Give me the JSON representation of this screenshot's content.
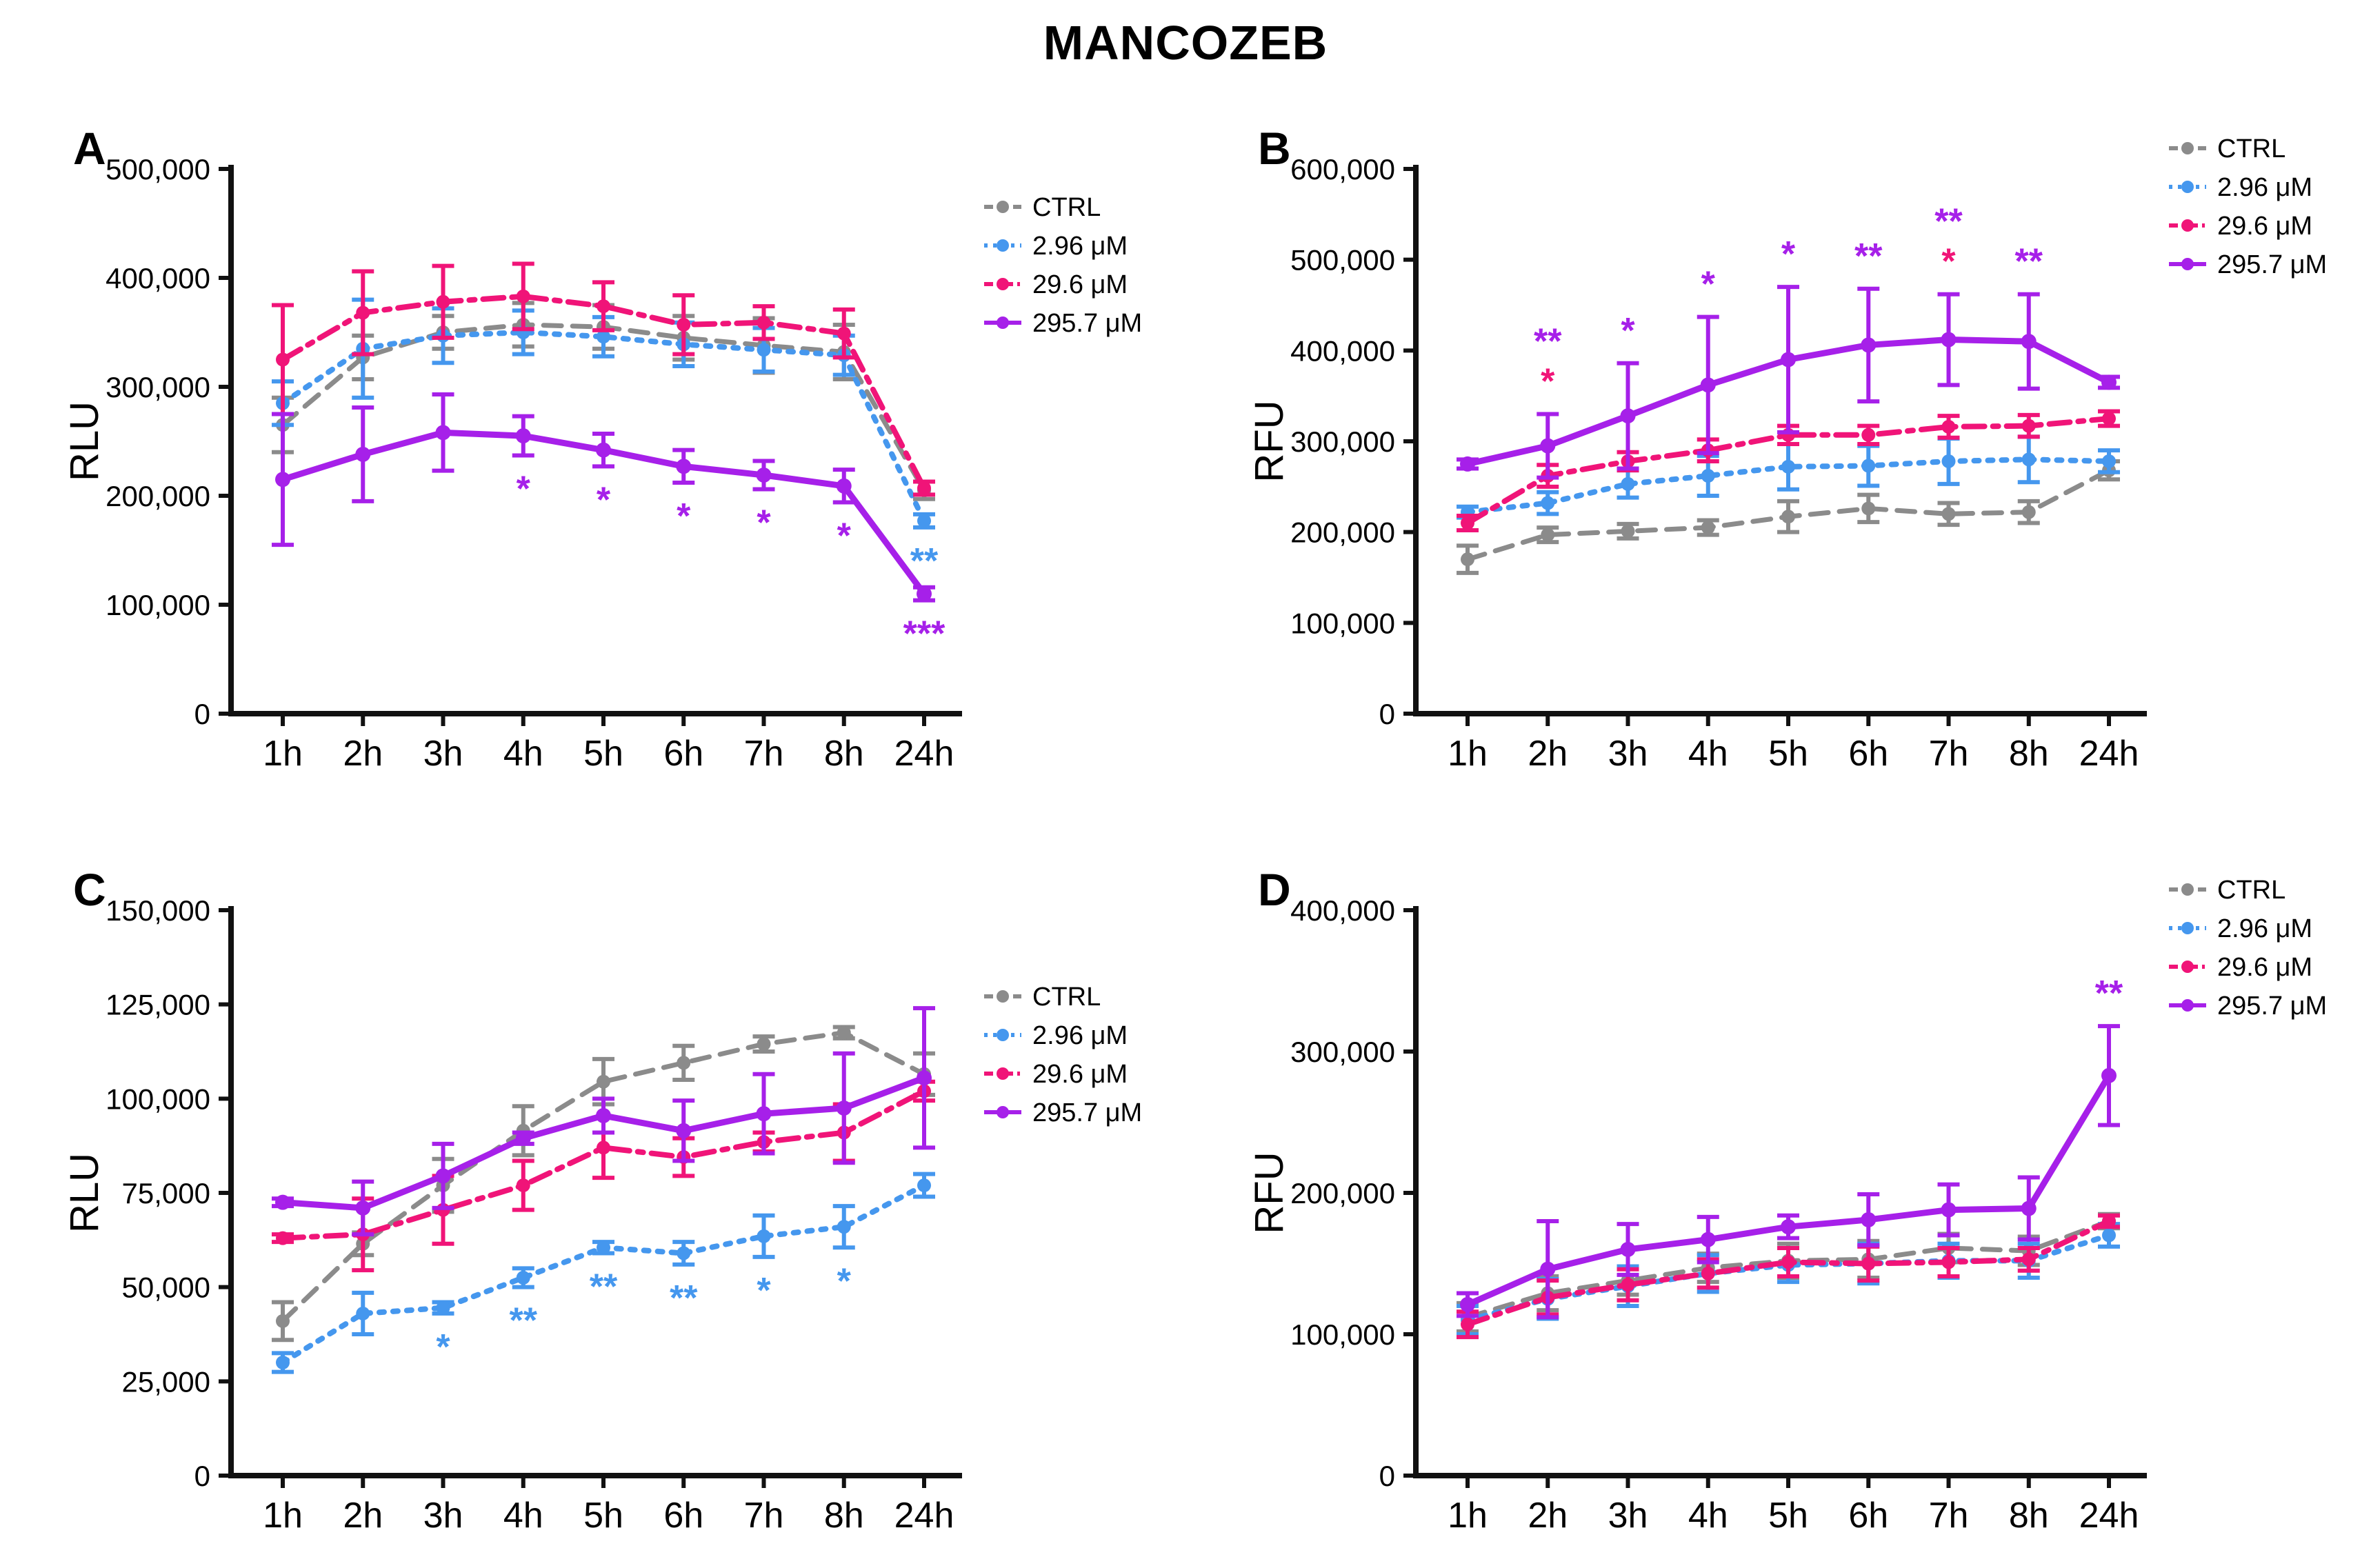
{
  "title": "MANCOZEB",
  "colors": {
    "ctrl": "#8B8B8B",
    "low": "#4597EE",
    "mid": "#F01478",
    "high": "#A620E9",
    "axis": "#111111"
  },
  "legend_labels": [
    "CTRL",
    "2.96 μM",
    "29.6 μM",
    "295.7 μM"
  ],
  "chart_data": [
    {
      "type": "line",
      "letter": "A",
      "ylabel": "RLU",
      "xlabel": "",
      "ylim": [
        0,
        500000
      ],
      "ytick_step": 100000,
      "ytick_labels": [
        "0",
        "100,000",
        "200,000",
        "300,000",
        "400,000",
        "500,000"
      ],
      "categories": [
        "1h",
        "2h",
        "3h",
        "4h",
        "5h",
        "6h",
        "7h",
        "8h",
        "24h"
      ],
      "legend_position": "right",
      "legend_y": 140,
      "grid": false,
      "series": [
        {
          "name": "CTRL",
          "color_key": "ctrl",
          "dash": "dashed",
          "values": [
            265000,
            327000,
            350000,
            357000,
            355000,
            345000,
            338000,
            332000,
            205000
          ],
          "errors": [
            25000,
            20000,
            15000,
            20000,
            20000,
            20000,
            25000,
            25000,
            8000
          ]
        },
        {
          "name": "2.96 μM",
          "color_key": "low",
          "dash": "dotted",
          "values": [
            285000,
            335000,
            347000,
            350000,
            346000,
            339000,
            334000,
            329000,
            177000
          ],
          "errors": [
            20000,
            45000,
            25000,
            20000,
            18000,
            20000,
            20000,
            18000,
            6000
          ]
        },
        {
          "name": "29.6 μM",
          "color_key": "mid",
          "dash": "dashdot",
          "values": [
            325000,
            368000,
            378000,
            383000,
            374000,
            357000,
            359000,
            349000,
            207000
          ],
          "errors": [
            50000,
            38000,
            33000,
            30000,
            22000,
            27000,
            15000,
            22000,
            6000
          ]
        },
        {
          "name": "295.7 μM",
          "color_key": "high",
          "dash": "solid",
          "values": [
            215000,
            238000,
            258000,
            255000,
            242000,
            227000,
            219000,
            209000,
            110000
          ],
          "errors": [
            60000,
            43000,
            35000,
            18000,
            15000,
            15000,
            13000,
            15000,
            6000
          ]
        }
      ],
      "annotations": [
        {
          "series": "295.7 μM",
          "xi": 3,
          "text": "*",
          "place": "below",
          "level": 1
        },
        {
          "series": "295.7 μM",
          "xi": 4,
          "text": "*",
          "place": "below",
          "level": 1
        },
        {
          "series": "295.7 μM",
          "xi": 5,
          "text": "*",
          "place": "below",
          "level": 1
        },
        {
          "series": "295.7 μM",
          "xi": 6,
          "text": "*",
          "place": "below",
          "level": 1
        },
        {
          "series": "295.7 μM",
          "xi": 7,
          "text": "*",
          "place": "below",
          "level": 1
        },
        {
          "series": "2.96 μM",
          "xi": 8,
          "text": "**",
          "place": "below",
          "level": 1
        },
        {
          "series": "295.7 μM",
          "xi": 8,
          "text": "***",
          "place": "below",
          "level": 1
        }
      ]
    },
    {
      "type": "line",
      "letter": "B",
      "ylabel": "RFU",
      "xlabel": "",
      "ylim": [
        0,
        600000
      ],
      "ytick_step": 100000,
      "ytick_labels": [
        "0",
        "100,000",
        "200,000",
        "300,000",
        "400,000",
        "500,000",
        "600,000"
      ],
      "categories": [
        "1h",
        "2h",
        "3h",
        "4h",
        "5h",
        "6h",
        "7h",
        "8h",
        "24h"
      ],
      "legend_position": "right",
      "legend_y": 55,
      "grid": false,
      "series": [
        {
          "name": "CTRL",
          "color_key": "ctrl",
          "dash": "dashed",
          "values": [
            170000,
            197000,
            201000,
            205000,
            217000,
            226000,
            220000,
            222000,
            268000
          ],
          "errors": [
            15000,
            8000,
            8000,
            8000,
            17000,
            15000,
            12000,
            12000,
            10000
          ]
        },
        {
          "name": "2.96 μM",
          "color_key": "low",
          "dash": "dotted",
          "values": [
            222000,
            232000,
            253000,
            262000,
            272000,
            273000,
            278000,
            280000,
            278000
          ],
          "errors": [
            6000,
            12000,
            15000,
            22000,
            25000,
            22000,
            25000,
            25000,
            12000
          ]
        },
        {
          "name": "29.6 μM",
          "color_key": "mid",
          "dash": "dashdot",
          "values": [
            210000,
            262000,
            278000,
            290000,
            307000,
            307000,
            316000,
            317000,
            325000
          ],
          "errors": [
            8000,
            12000,
            10000,
            12000,
            10000,
            10000,
            12000,
            12000,
            8000
          ]
        },
        {
          "name": "295.7 μM",
          "color_key": "high",
          "dash": "solid",
          "values": [
            275000,
            295000,
            328000,
            362000,
            390000,
            406000,
            412000,
            410000,
            365000
          ],
          "errors": [
            5000,
            35000,
            58000,
            75000,
            80000,
            62000,
            50000,
            52000,
            6000
          ]
        }
      ],
      "annotations": [
        {
          "series": "29.6 μM",
          "anchor": "295.7 μM",
          "xi": 1,
          "text": "*",
          "place": "above",
          "level": 1
        },
        {
          "series": "295.7 μM",
          "xi": 1,
          "text": "**",
          "place": "above",
          "level": 2
        },
        {
          "series": "295.7 μM",
          "xi": 2,
          "text": "*",
          "place": "above",
          "level": 1
        },
        {
          "series": "295.7 μM",
          "xi": 3,
          "text": "*",
          "place": "above",
          "level": 1
        },
        {
          "series": "295.7 μM",
          "xi": 4,
          "text": "*",
          "place": "above",
          "level": 1
        },
        {
          "series": "295.7 μM",
          "xi": 5,
          "text": "**",
          "place": "above",
          "level": 1
        },
        {
          "series": "29.6 μM",
          "anchor": "295.7 μM",
          "xi": 6,
          "text": "*",
          "place": "above",
          "level": 1
        },
        {
          "series": "295.7 μM",
          "xi": 6,
          "text": "**",
          "place": "above",
          "level": 2
        },
        {
          "series": "295.7 μM",
          "xi": 7,
          "text": "**",
          "place": "above",
          "level": 1
        }
      ]
    },
    {
      "type": "line",
      "letter": "C",
      "ylabel": "RLU",
      "xlabel": "",
      "ylim": [
        0,
        150000
      ],
      "ytick_step": 25000,
      "ytick_labels": [
        "0",
        "25,000",
        "50,000",
        "75,000",
        "100,000",
        "125,000",
        "150,000"
      ],
      "categories": [
        "1h",
        "2h",
        "3h",
        "4h",
        "5h",
        "6h",
        "7h",
        "8h",
        "24h"
      ],
      "legend_position": "right",
      "legend_y": 210,
      "grid": false,
      "series": [
        {
          "name": "CTRL",
          "color_key": "ctrl",
          "dash": "dashed",
          "values": [
            41000,
            61500,
            77000,
            91500,
            104500,
            109500,
            114500,
            117500,
            106500
          ],
          "errors": [
            5000,
            3000,
            7000,
            6500,
            6000,
            4500,
            2000,
            1500,
            5500
          ]
        },
        {
          "name": "2.96 μM",
          "color_key": "low",
          "dash": "dotted",
          "values": [
            30000,
            43000,
            44500,
            52500,
            60500,
            59000,
            63500,
            66000,
            77000
          ],
          "errors": [
            2500,
            5500,
            1500,
            2500,
            1500,
            3000,
            5500,
            5500,
            3000
          ]
        },
        {
          "name": "29.6 μM",
          "color_key": "mid",
          "dash": "dashdot",
          "values": [
            63000,
            64000,
            70500,
            77000,
            87000,
            84500,
            88500,
            91000,
            102000
          ],
          "errors": [
            1000,
            9500,
            9000,
            6500,
            8000,
            5000,
            2500,
            7500,
            2500
          ]
        },
        {
          "name": "295.7 μM",
          "color_key": "high",
          "dash": "solid",
          "values": [
            72500,
            71000,
            79500,
            89500,
            95500,
            91500,
            96000,
            97500,
            105500
          ],
          "errors": [
            1000,
            7000,
            8500,
            1500,
            4500,
            8000,
            10500,
            14500,
            18500
          ]
        }
      ],
      "annotations": [
        {
          "series": "2.96 μM",
          "xi": 2,
          "text": "*",
          "place": "below",
          "level": 1
        },
        {
          "series": "2.96 μM",
          "xi": 3,
          "text": "**",
          "place": "below",
          "level": 1
        },
        {
          "series": "2.96 μM",
          "xi": 4,
          "text": "**",
          "place": "below",
          "level": 1
        },
        {
          "series": "2.96 μM",
          "xi": 5,
          "text": "**",
          "place": "below",
          "level": 1
        },
        {
          "series": "2.96 μM",
          "xi": 6,
          "text": "*",
          "place": "below",
          "level": 1
        },
        {
          "series": "2.96 μM",
          "xi": 7,
          "text": "*",
          "place": "below",
          "level": 1
        }
      ]
    },
    {
      "type": "line",
      "letter": "D",
      "ylabel": "RFU",
      "xlabel": "",
      "ylim": [
        0,
        400000
      ],
      "ytick_step": 100000,
      "ytick_labels": [
        "0",
        "100,000",
        "200,000",
        "300,000",
        "400,000"
      ],
      "categories": [
        "1h",
        "2h",
        "3h",
        "4h",
        "5h",
        "6h",
        "7h",
        "8h",
        "24h"
      ],
      "legend_position": "right",
      "legend_y": 55,
      "grid": false,
      "series": [
        {
          "name": "CTRL",
          "color_key": "ctrl",
          "dash": "dashed",
          "values": [
            112000,
            129000,
            138000,
            147000,
            152000,
            153000,
            161000,
            159000,
            180000
          ],
          "errors": [
            10000,
            12000,
            10000,
            10000,
            12000,
            13000,
            10000,
            10000,
            5000
          ]
        },
        {
          "name": "2.96 μM",
          "color_key": "low",
          "dash": "dotted",
          "values": [
            110000,
            125000,
            134000,
            143000,
            149000,
            150000,
            152000,
            152000,
            170000
          ],
          "errors": [
            10000,
            14000,
            14000,
            13000,
            12000,
            14000,
            12000,
            12000,
            8000
          ]
        },
        {
          "name": "29.6 μM",
          "color_key": "mid",
          "dash": "dashdot",
          "values": [
            107000,
            126000,
            135000,
            143000,
            151000,
            150000,
            151000,
            153000,
            180000
          ],
          "errors": [
            9000,
            12000,
            11000,
            10000,
            10000,
            12000,
            10000,
            8000,
            4000
          ]
        },
        {
          "name": "295.7 μM",
          "color_key": "high",
          "dash": "solid",
          "values": [
            121000,
            146000,
            160000,
            167000,
            176000,
            181000,
            188000,
            189000,
            283000
          ],
          "errors": [
            8000,
            34000,
            18000,
            16000,
            8000,
            18000,
            18000,
            22000,
            35000
          ]
        }
      ],
      "annotations": [
        {
          "series": "295.7 μM",
          "xi": 8,
          "text": "**",
          "place": "above",
          "level": 1
        }
      ]
    }
  ]
}
